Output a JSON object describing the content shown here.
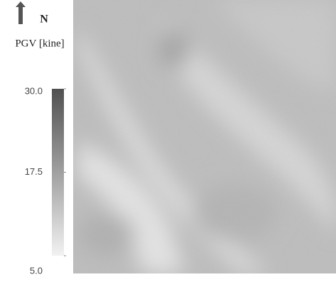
{
  "north_label": "N",
  "colorbar": {
    "label": "PGV [kine]",
    "lim": [
      5.0,
      30.0
    ],
    "ticks": [
      {
        "value": 30.0,
        "label": "30.0"
      },
      {
        "value": 17.5,
        "label": "17.5"
      },
      {
        "value": 5.0,
        "label": "5.0"
      }
    ]
  }
}
